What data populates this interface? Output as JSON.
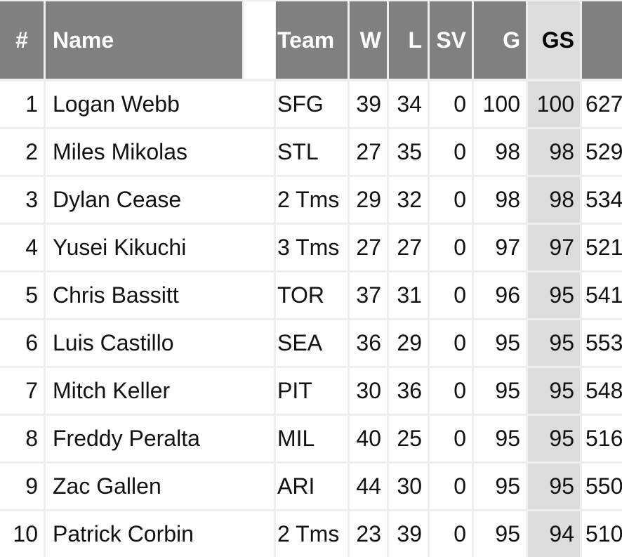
{
  "columns": [
    {
      "key": "rank",
      "label": "#"
    },
    {
      "key": "name",
      "label": "Name"
    },
    {
      "key": "team",
      "label": "Team"
    },
    {
      "key": "w",
      "label": "W"
    },
    {
      "key": "l",
      "label": "L"
    },
    {
      "key": "sv",
      "label": "SV"
    },
    {
      "key": "g",
      "label": "G"
    },
    {
      "key": "gs",
      "label": "GS",
      "sorted": true
    },
    {
      "key": "next",
      "label": ""
    }
  ],
  "rows": [
    {
      "rank": "1",
      "name": "Logan Webb",
      "team": "SFG",
      "w": "39",
      "l": "34",
      "sv": "0",
      "g": "100",
      "gs": "100",
      "next": "627"
    },
    {
      "rank": "2",
      "name": "Miles Mikolas",
      "team": "STL",
      "w": "27",
      "l": "35",
      "sv": "0",
      "g": "98",
      "gs": "98",
      "next": "529"
    },
    {
      "rank": "3",
      "name": "Dylan Cease",
      "team": "2 Tms",
      "w": "29",
      "l": "32",
      "sv": "0",
      "g": "98",
      "gs": "98",
      "next": "534"
    },
    {
      "rank": "4",
      "name": "Yusei Kikuchi",
      "team": "3 Tms",
      "w": "27",
      "l": "27",
      "sv": "0",
      "g": "97",
      "gs": "97",
      "next": "521"
    },
    {
      "rank": "5",
      "name": "Chris Bassitt",
      "team": "TOR",
      "w": "37",
      "l": "31",
      "sv": "0",
      "g": "96",
      "gs": "95",
      "next": "541"
    },
    {
      "rank": "6",
      "name": "Luis Castillo",
      "team": "SEA",
      "w": "36",
      "l": "29",
      "sv": "0",
      "g": "95",
      "gs": "95",
      "next": "553"
    },
    {
      "rank": "7",
      "name": "Mitch Keller",
      "team": "PIT",
      "w": "30",
      "l": "36",
      "sv": "0",
      "g": "95",
      "gs": "95",
      "next": "548"
    },
    {
      "rank": "8",
      "name": "Freddy Peralta",
      "team": "MIL",
      "w": "40",
      "l": "25",
      "sv": "0",
      "g": "95",
      "gs": "95",
      "next": "516"
    },
    {
      "rank": "9",
      "name": "Zac Gallen",
      "team": "ARI",
      "w": "44",
      "l": "30",
      "sv": "0",
      "g": "95",
      "gs": "95",
      "next": "550"
    },
    {
      "rank": "10",
      "name": "Patrick Corbin",
      "team": "2 Tms",
      "w": "23",
      "l": "39",
      "sv": "0",
      "g": "95",
      "gs": "94",
      "next": "510"
    }
  ]
}
